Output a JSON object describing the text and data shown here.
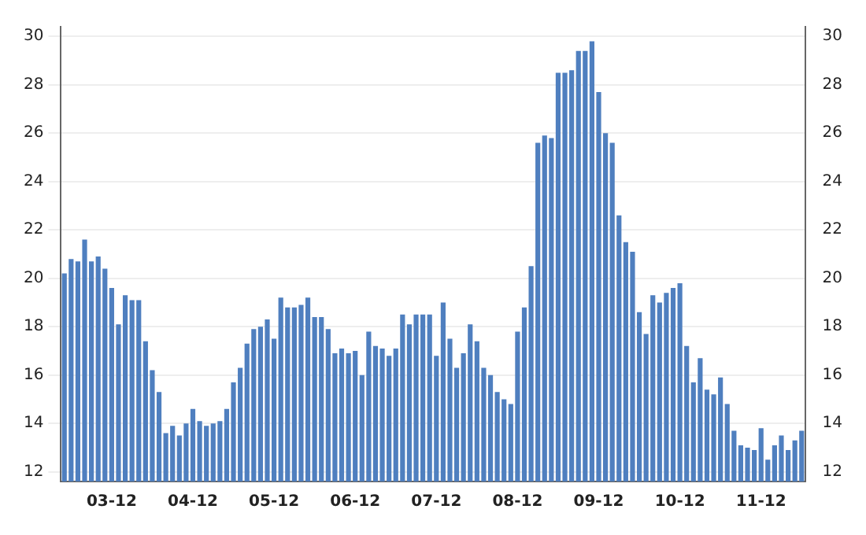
{
  "chart_data": {
    "type": "bar",
    "categories": [
      null,
      null,
      null,
      null,
      null,
      null,
      null,
      "03-12",
      null,
      null,
      null,
      null,
      null,
      null,
      null,
      null,
      null,
      null,
      null,
      "04-12",
      null,
      null,
      null,
      null,
      null,
      null,
      null,
      null,
      null,
      null,
      null,
      "05-12",
      null,
      null,
      null,
      null,
      null,
      null,
      null,
      null,
      null,
      null,
      null,
      "06-12",
      null,
      null,
      null,
      null,
      null,
      null,
      null,
      null,
      null,
      null,
      null,
      "07-12",
      null,
      null,
      null,
      null,
      null,
      null,
      null,
      null,
      null,
      null,
      null,
      "08-12",
      null,
      null,
      null,
      null,
      null,
      null,
      null,
      null,
      null,
      null,
      null,
      "09-12",
      null,
      null,
      null,
      null,
      null,
      null,
      null,
      null,
      null,
      null,
      null,
      "10-12",
      null,
      null,
      null,
      null,
      null,
      null,
      null,
      null,
      null,
      null,
      null,
      "11-12",
      null,
      null,
      null,
      null,
      null,
      null
    ],
    "values": [
      20.2,
      20.8,
      20.7,
      21.6,
      20.7,
      20.9,
      20.4,
      19.6,
      18.1,
      19.3,
      19.1,
      19.1,
      17.4,
      16.2,
      15.3,
      13.6,
      13.9,
      13.5,
      14.0,
      14.6,
      14.1,
      13.9,
      14.0,
      14.1,
      14.6,
      15.7,
      16.3,
      17.3,
      17.9,
      18.0,
      18.3,
      17.5,
      19.2,
      18.8,
      18.8,
      18.9,
      19.2,
      18.4,
      18.4,
      17.9,
      16.9,
      17.1,
      16.9,
      17.0,
      16.0,
      17.8,
      17.2,
      17.1,
      16.8,
      17.1,
      18.5,
      18.1,
      18.5,
      18.5,
      18.5,
      16.8,
      19.0,
      17.5,
      16.3,
      16.9,
      18.1,
      17.4,
      16.3,
      16.0,
      15.3,
      15.0,
      14.8,
      17.8,
      18.8,
      20.5,
      25.6,
      25.9,
      25.8,
      28.5,
      28.5,
      28.6,
      29.4,
      29.4,
      29.8,
      27.7,
      26.0,
      25.6,
      22.6,
      21.5,
      21.1,
      18.6,
      17.7,
      19.3,
      19.0,
      19.4,
      19.6,
      19.8,
      17.2,
      15.7,
      16.7,
      15.4,
      15.2,
      15.9,
      14.8,
      13.7,
      13.1,
      13.0,
      12.9,
      13.8,
      12.5,
      13.1,
      13.5,
      12.9,
      13.3,
      13.7
    ],
    "color": "#4f7fbf",
    "ylim": [
      11.6,
      30.4
    ],
    "yticks": [
      12,
      14,
      16,
      18,
      20,
      22,
      24,
      26,
      28,
      30
    ],
    "y2lim": [
      11.6,
      30.4
    ],
    "y2ticks": [
      12,
      14,
      16,
      18,
      20,
      22,
      24,
      26,
      28,
      30
    ],
    "grid": "y",
    "legend": false
  }
}
